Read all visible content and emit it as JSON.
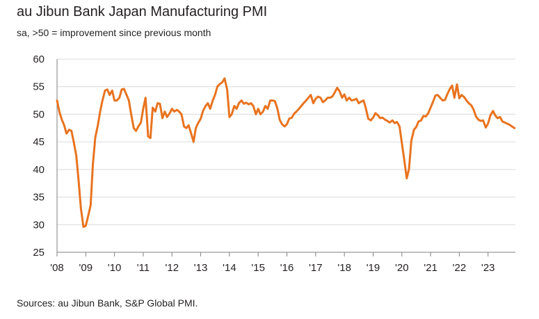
{
  "title": "au Jibun Bank Japan Manufacturing PMI",
  "subtitle": "sa, >50 = improvement since previous month",
  "source": "Sources: au Jibun Bank, S&P Global PMI.",
  "colors": {
    "line": "#e8731f",
    "grid": "#d9d9d9",
    "axis": "#7f7f7f",
    "text": "#231f20"
  },
  "chart_data": {
    "type": "line",
    "title": "au Jibun Bank Japan Manufacturing PMI",
    "subtitle": "sa, >50 = improvement since previous month",
    "xlabel": "",
    "ylabel": "",
    "ylim": [
      25,
      60
    ],
    "yticks": [
      25,
      30,
      35,
      40,
      45,
      50,
      55,
      60
    ],
    "xlim": [
      2008.0,
      2023.95
    ],
    "xticks": [
      2008,
      2009,
      2010,
      2011,
      2012,
      2013,
      2014,
      2015,
      2016,
      2017,
      2018,
      2019,
      2020,
      2021,
      2022,
      2023
    ],
    "xtick_labels": [
      "'08",
      "'09",
      "'10",
      "'11",
      "'12",
      "'13",
      "'14",
      "'15",
      "'16",
      "'17",
      "'18",
      "'19",
      "'20",
      "'21",
      "'22",
      "'23"
    ],
    "grid": true,
    "legend": "none",
    "series": [
      {
        "color": "#e8731f",
        "x": [
          2008.0,
          2008.08,
          2008.17,
          2008.25,
          2008.33,
          2008.42,
          2008.5,
          2008.58,
          2008.67,
          2008.75,
          2008.83,
          2008.92,
          2009.0,
          2009.08,
          2009.17,
          2009.25,
          2009.33,
          2009.42,
          2009.5,
          2009.58,
          2009.67,
          2009.75,
          2009.83,
          2009.92,
          2010.0,
          2010.08,
          2010.17,
          2010.25,
          2010.33,
          2010.42,
          2010.5,
          2010.58,
          2010.67,
          2010.75,
          2010.83,
          2010.92,
          2011.0,
          2011.08,
          2011.17,
          2011.25,
          2011.33,
          2011.42,
          2011.5,
          2011.58,
          2011.67,
          2011.75,
          2011.83,
          2011.92,
          2012.0,
          2012.08,
          2012.17,
          2012.25,
          2012.33,
          2012.42,
          2012.5,
          2012.58,
          2012.67,
          2012.75,
          2012.83,
          2012.92,
          2013.0,
          2013.08,
          2013.17,
          2013.25,
          2013.33,
          2013.42,
          2013.5,
          2013.58,
          2013.67,
          2013.75,
          2013.83,
          2013.92,
          2014.0,
          2014.08,
          2014.17,
          2014.25,
          2014.33,
          2014.42,
          2014.5,
          2014.58,
          2014.67,
          2014.75,
          2014.83,
          2014.92,
          2015.0,
          2015.08,
          2015.17,
          2015.25,
          2015.33,
          2015.42,
          2015.5,
          2015.58,
          2015.67,
          2015.75,
          2015.83,
          2015.92,
          2016.0,
          2016.08,
          2016.17,
          2016.25,
          2016.33,
          2016.42,
          2016.5,
          2016.58,
          2016.67,
          2016.75,
          2016.83,
          2016.92,
          2017.0,
          2017.08,
          2017.17,
          2017.25,
          2017.33,
          2017.42,
          2017.5,
          2017.58,
          2017.67,
          2017.75,
          2017.83,
          2017.92,
          2018.0,
          2018.08,
          2018.17,
          2018.25,
          2018.33,
          2018.42,
          2018.5,
          2018.58,
          2018.67,
          2018.75,
          2018.83,
          2018.92,
          2019.0,
          2019.08,
          2019.17,
          2019.25,
          2019.33,
          2019.42,
          2019.5,
          2019.58,
          2019.67,
          2019.75,
          2019.83,
          2019.92,
          2020.0,
          2020.08,
          2020.17,
          2020.25,
          2020.33,
          2020.42,
          2020.5,
          2020.58,
          2020.67,
          2020.75,
          2020.83,
          2020.92,
          2021.0,
          2021.08,
          2021.17,
          2021.25,
          2021.33,
          2021.42,
          2021.5,
          2021.58,
          2021.67,
          2021.75,
          2021.83,
          2021.92,
          2022.0,
          2022.08,
          2022.17,
          2022.25,
          2022.33,
          2022.42,
          2022.5,
          2022.58,
          2022.67,
          2022.75,
          2022.83,
          2022.92,
          2023.0,
          2023.08,
          2023.17,
          2023.25,
          2023.33,
          2023.42,
          2023.5,
          2023.58,
          2023.67,
          2023.75,
          2023.83,
          2023.92
        ],
        "y": [
          52.5,
          50.5,
          49.0,
          48.0,
          46.5,
          47.2,
          47.0,
          45.0,
          42.5,
          38.0,
          33.0,
          29.6,
          29.8,
          31.5,
          33.5,
          41.0,
          45.8,
          48.0,
          50.5,
          52.5,
          54.3,
          54.5,
          53.5,
          54.3,
          52.5,
          52.5,
          53.0,
          54.5,
          54.6,
          53.5,
          52.5,
          50.0,
          47.5,
          47.0,
          47.8,
          48.5,
          51.0,
          53.0,
          46.0,
          45.7,
          51.2,
          50.5,
          52.0,
          51.9,
          49.3,
          50.5,
          49.5,
          50.2,
          51.0,
          50.5,
          50.8,
          50.5,
          50.0,
          47.8,
          47.5,
          48.0,
          46.5,
          45.0,
          47.5,
          48.5,
          49.2,
          50.6,
          51.5,
          52.0,
          51.0,
          52.5,
          53.5,
          55.0,
          55.5,
          55.8,
          56.5,
          54.5,
          49.5,
          50.0,
          51.5,
          51.0,
          52.0,
          52.5,
          51.9,
          52.1,
          51.8,
          52.0,
          51.5,
          50.0,
          51.0,
          50.0,
          50.5,
          51.5,
          51.0,
          52.5,
          52.5,
          52.4,
          51.0,
          49.0,
          48.2,
          47.8,
          48.2,
          49.2,
          49.4,
          50.1,
          50.5,
          51.0,
          51.5,
          52.0,
          52.5,
          53.0,
          53.5,
          52.0,
          52.8,
          53.2,
          53.0,
          52.2,
          52.5,
          53.0,
          53.0,
          53.2,
          54.0,
          54.8,
          54.2,
          53.0,
          53.6,
          52.5,
          53.0,
          52.5,
          52.6,
          52.8,
          52.0,
          52.3,
          52.5,
          51.0,
          49.2,
          48.9,
          49.4,
          50.2,
          49.8,
          49.3,
          49.4,
          49.0,
          48.8,
          48.5,
          48.9,
          48.4,
          48.6,
          47.8,
          44.8,
          41.9,
          38.4,
          40.1,
          45.2,
          47.2,
          47.7,
          48.7,
          48.9,
          49.7,
          49.6,
          50.2,
          51.2,
          52.2,
          53.4,
          53.5,
          53.0,
          52.5,
          52.6,
          53.6,
          54.6,
          55.2,
          53.0,
          55.4,
          52.9,
          53.5,
          53.1,
          52.5,
          52.0,
          51.6,
          50.8,
          49.6,
          49.0,
          48.8,
          48.9,
          47.6,
          48.3,
          49.8,
          50.6,
          49.8,
          49.3,
          49.5,
          48.7,
          48.5,
          48.3,
          48.1,
          47.8,
          47.5
        ]
      }
    ]
  }
}
